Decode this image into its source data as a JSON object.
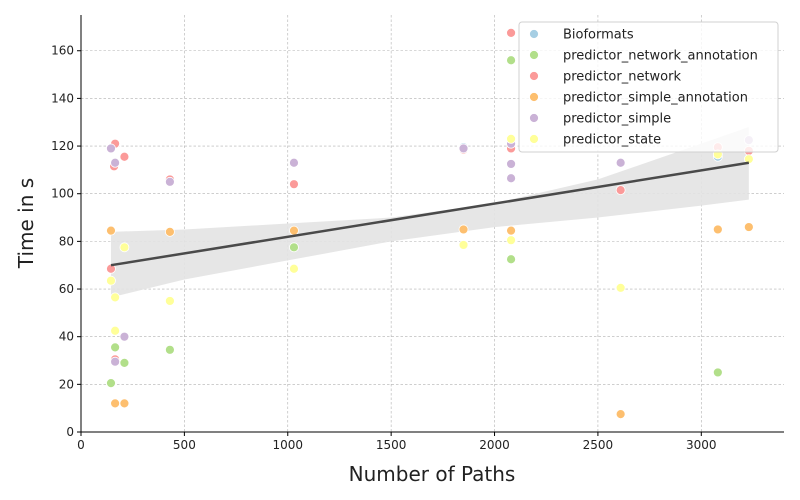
{
  "chart_data": {
    "type": "scatter",
    "title": "",
    "xlabel": "Number of Paths",
    "ylabel": "Time in s",
    "xlim": [
      0,
      3400
    ],
    "ylim": [
      0,
      175
    ],
    "xticks": [
      0,
      500,
      1000,
      1500,
      2000,
      2500,
      3000
    ],
    "yticks": [
      0,
      20,
      40,
      60,
      80,
      100,
      120,
      140,
      160
    ],
    "grid": true,
    "legend_position": "top-right",
    "colors": {
      "Bioformats": "#a6cee3",
      "predictor_network_annotation": "#b2df8a",
      "predictor_network": "#fb9a99",
      "predictor_simple_annotation": "#fdbf6f",
      "predictor_simple": "#cab2d6",
      "predictor_state": "#ffff99",
      "regression_line": "#4a4a4a",
      "confidence_band": "#e3e3e3"
    },
    "series": [
      {
        "name": "Bioformats",
        "points": [
          [
            1850,
            119.5
          ],
          [
            3080,
            115.5
          ]
        ]
      },
      {
        "name": "predictor_network_annotation",
        "points": [
          [
            145,
            20.5
          ],
          [
            165,
            35.5
          ],
          [
            210,
            29
          ],
          [
            430,
            34.5
          ],
          [
            1030,
            77.5
          ],
          [
            2080,
            156
          ],
          [
            2080,
            72.5
          ],
          [
            3080,
            25
          ]
        ]
      },
      {
        "name": "predictor_network",
        "points": [
          [
            145,
            68.5
          ],
          [
            160,
            111.5
          ],
          [
            165,
            121
          ],
          [
            165,
            30.5
          ],
          [
            210,
            115.5
          ],
          [
            430,
            106
          ],
          [
            1030,
            104
          ],
          [
            1850,
            118.5
          ],
          [
            2080,
            167.5
          ],
          [
            2080,
            119
          ],
          [
            2610,
            101.5
          ],
          [
            3080,
            119.5
          ],
          [
            3230,
            118
          ]
        ]
      },
      {
        "name": "predictor_simple_annotation",
        "points": [
          [
            145,
            84.5
          ],
          [
            165,
            12
          ],
          [
            210,
            12
          ],
          [
            430,
            84
          ],
          [
            1030,
            84.5
          ],
          [
            1850,
            85
          ],
          [
            2080,
            84.5
          ],
          [
            2080,
            121
          ],
          [
            2610,
            7.5
          ],
          [
            3080,
            85
          ],
          [
            3230,
            86
          ]
        ]
      },
      {
        "name": "predictor_simple",
        "points": [
          [
            145,
            119
          ],
          [
            165,
            113
          ],
          [
            210,
            40
          ],
          [
            165,
            29.5
          ],
          [
            430,
            105
          ],
          [
            1030,
            113
          ],
          [
            1850,
            119
          ],
          [
            2080,
            121
          ],
          [
            2080,
            112.5
          ],
          [
            2080,
            106.5
          ],
          [
            2610,
            113
          ],
          [
            3230,
            122.5
          ]
        ]
      },
      {
        "name": "predictor_state",
        "points": [
          [
            145,
            63.5
          ],
          [
            165,
            56.5
          ],
          [
            165,
            42.5
          ],
          [
            210,
            77.5
          ],
          [
            430,
            55
          ],
          [
            1030,
            68.5
          ],
          [
            1850,
            78.5
          ],
          [
            2080,
            80.5
          ],
          [
            2080,
            123
          ],
          [
            2610,
            60.5
          ],
          [
            3080,
            116.5
          ],
          [
            3230,
            114.5
          ]
        ]
      }
    ],
    "regression": {
      "start": [
        145,
        70
      ],
      "end": [
        3230,
        113
      ]
    },
    "confidence_band": {
      "upper": [
        [
          145,
          84
        ],
        [
          500,
          85
        ],
        [
          1000,
          87.5
        ],
        [
          1500,
          90
        ],
        [
          2000,
          96
        ],
        [
          2500,
          106
        ],
        [
          3000,
          121
        ],
        [
          3230,
          128
        ]
      ],
      "lower": [
        [
          145,
          56.5
        ],
        [
          500,
          64
        ],
        [
          1000,
          72
        ],
        [
          1500,
          80
        ],
        [
          2000,
          86
        ],
        [
          2500,
          90
        ],
        [
          3000,
          95
        ],
        [
          3230,
          97.5
        ]
      ]
    }
  }
}
